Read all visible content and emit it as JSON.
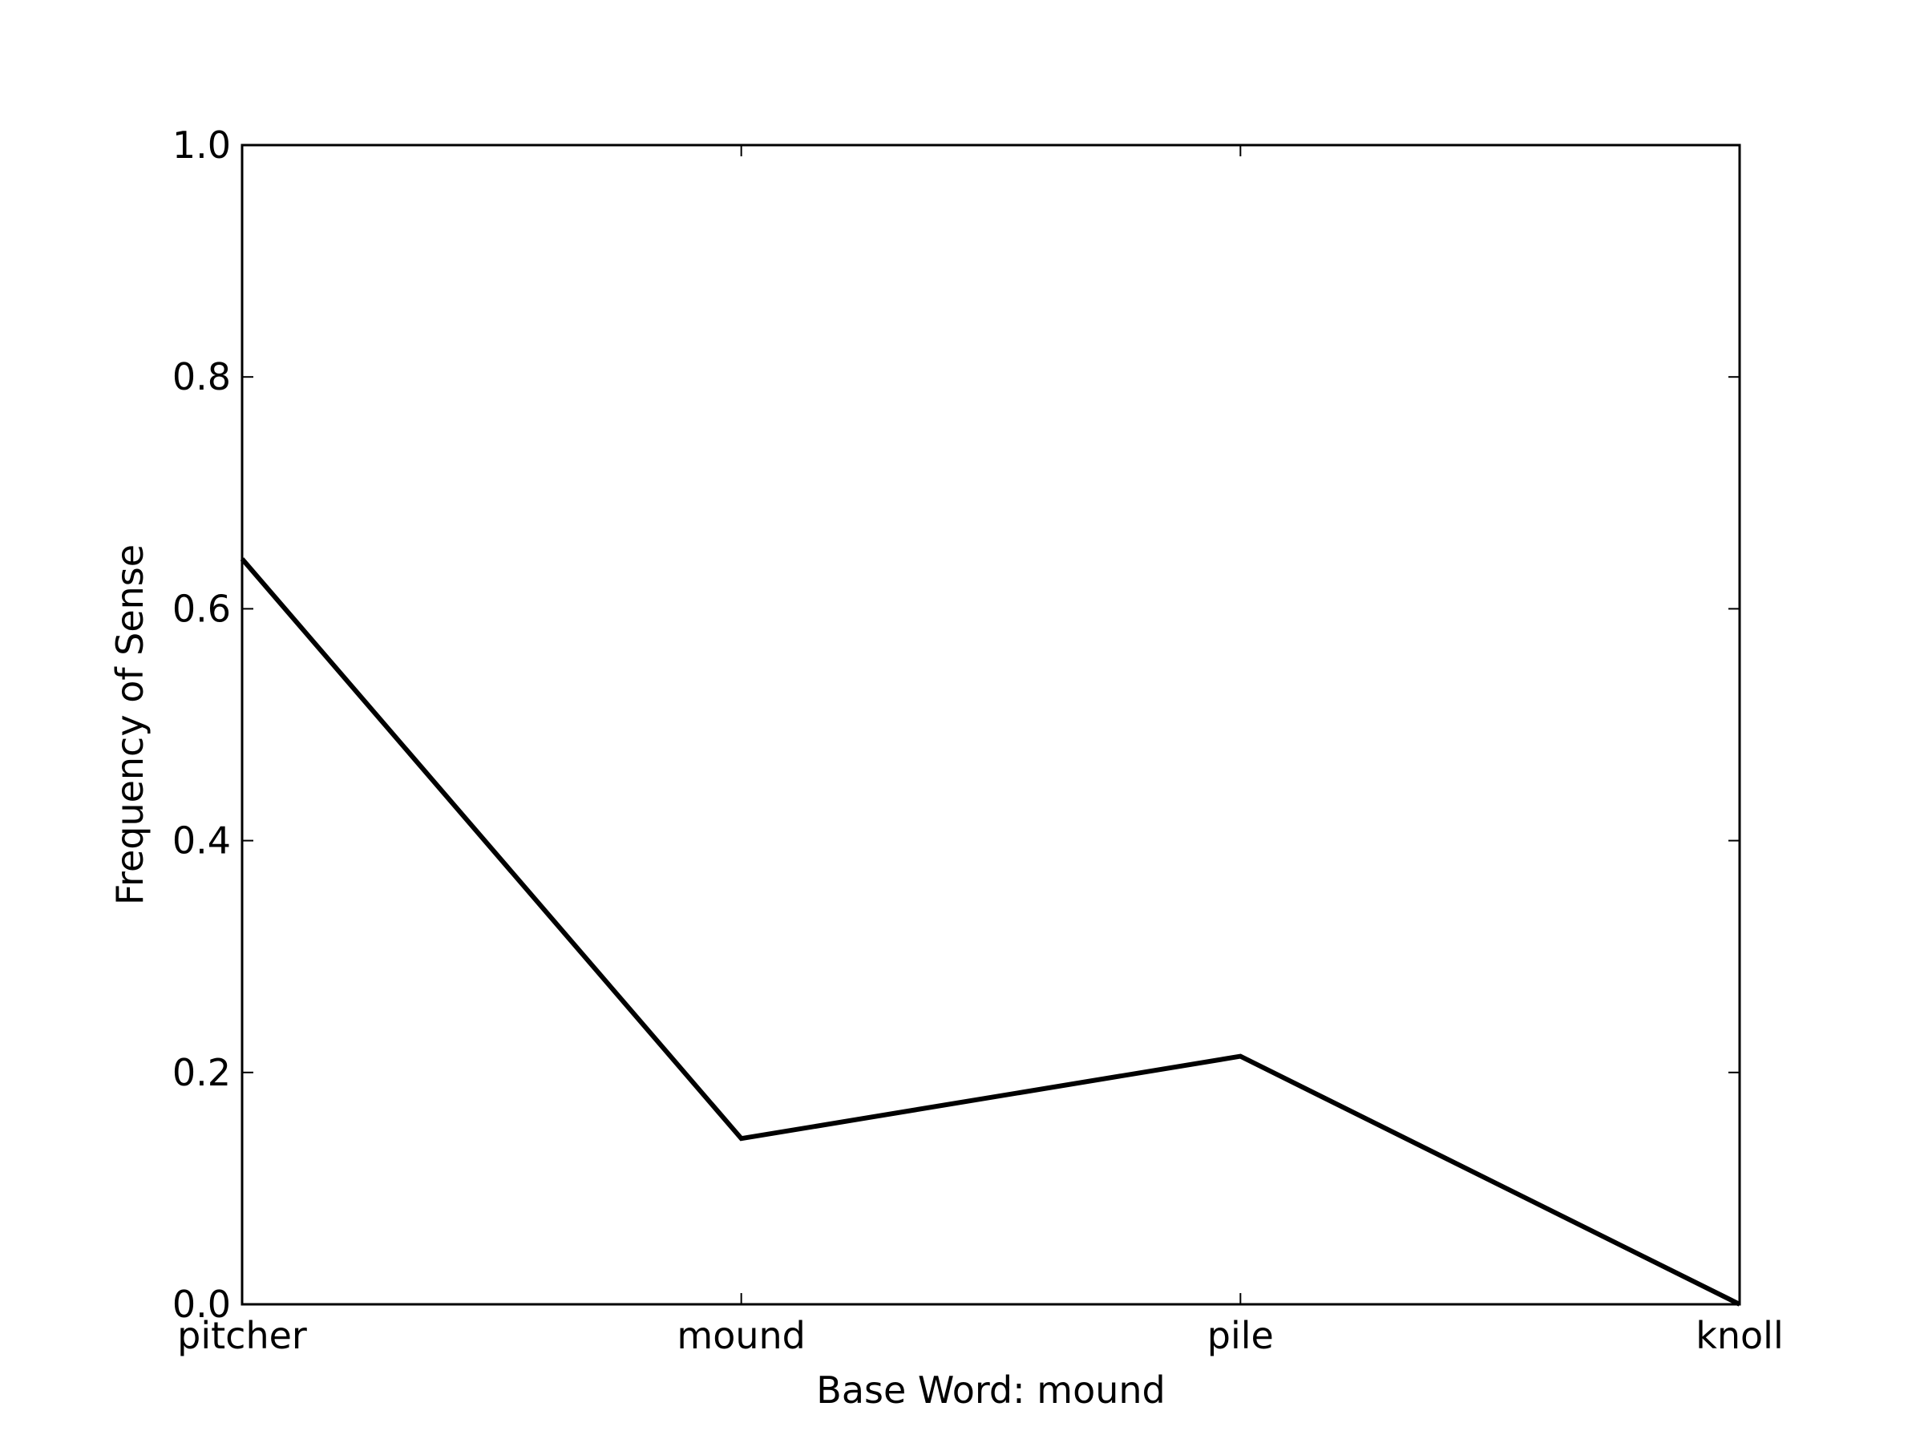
{
  "chart_data": {
    "type": "line",
    "categories": [
      "pitcher",
      "mound",
      "pile",
      "knoll"
    ],
    "series": [
      {
        "values": [
          0.643,
          0.143,
          0.214,
          0.0
        ]
      }
    ],
    "title": "",
    "xlabel": "Base Word: mound",
    "ylabel": "Frequency of Sense",
    "ylim": [
      0.0,
      1.0
    ],
    "yticks": [
      "0.0",
      "0.2",
      "0.4",
      "0.6",
      "0.8",
      "1.0"
    ],
    "grid": false,
    "line_color": "#000000",
    "axis_color": "#000000"
  }
}
